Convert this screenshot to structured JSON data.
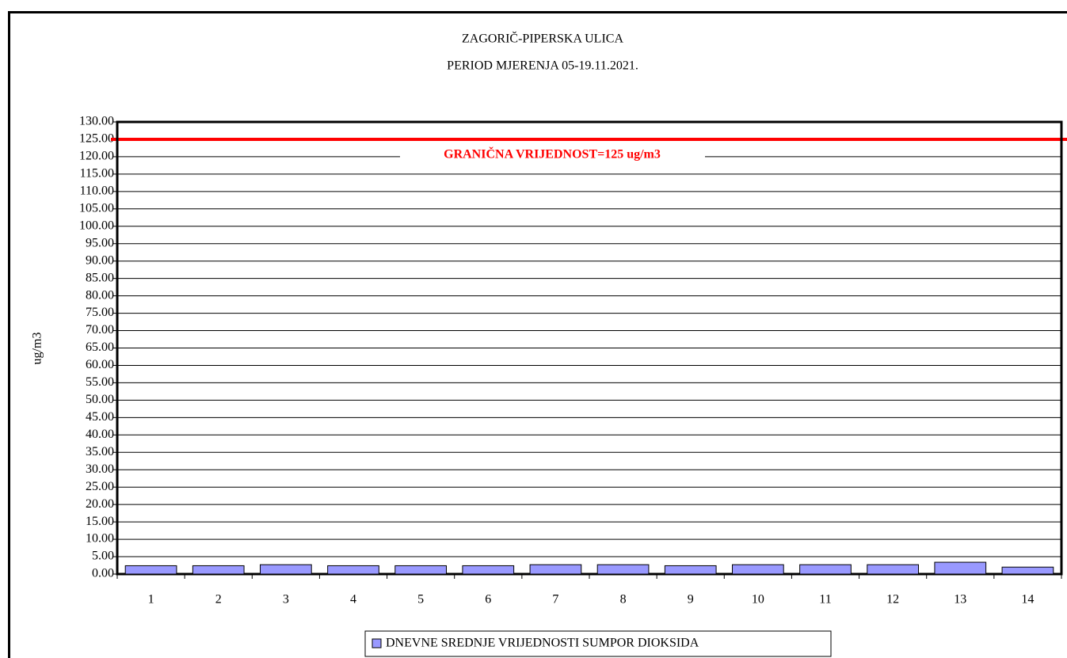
{
  "chart_data": {
    "type": "bar",
    "title": "ZAGORIČ-PIPERSKA ULICA",
    "subtitle": "PERIOD MJERENJA 05-19.11.2021.",
    "ylabel": "ug/m3",
    "categories": [
      "1",
      "2",
      "3",
      "4",
      "5",
      "6",
      "7",
      "8",
      "9",
      "10",
      "11",
      "12",
      "13",
      "14"
    ],
    "series": [
      {
        "name": "DNEVNE SREDNJE VRIJEDNOSTI SUMPOR DIOKSIDA",
        "color": "#9999ff",
        "values": [
          2.4,
          2.4,
          2.7,
          2.4,
          2.4,
          2.4,
          2.7,
          2.7,
          2.4,
          2.7,
          2.7,
          2.7,
          3.4,
          2.0
        ]
      }
    ],
    "ylim": [
      0,
      130
    ],
    "yticks": [
      {
        "value": 0,
        "label": "0.00"
      },
      {
        "value": 5,
        "label": "5.00"
      },
      {
        "value": 10,
        "label": "10.00"
      },
      {
        "value": 15,
        "label": "15.00"
      },
      {
        "value": 20,
        "label": "20.00"
      },
      {
        "value": 25,
        "label": "25.00"
      },
      {
        "value": 30,
        "label": "30.00"
      },
      {
        "value": 35,
        "label": "35.00"
      },
      {
        "value": 40,
        "label": "40.00"
      },
      {
        "value": 45,
        "label": "45.00"
      },
      {
        "value": 50,
        "label": "50.00"
      },
      {
        "value": 55,
        "label": "55.00"
      },
      {
        "value": 60,
        "label": "60.00"
      },
      {
        "value": 65,
        "label": "65.00"
      },
      {
        "value": 70,
        "label": "70.00"
      },
      {
        "value": 75,
        "label": "75.00"
      },
      {
        "value": 80,
        "label": "80.00"
      },
      {
        "value": 85,
        "label": "85.00"
      },
      {
        "value": 90,
        "label": "90.00"
      },
      {
        "value": 95,
        "label": "95.00"
      },
      {
        "value": 100,
        "label": "100.00"
      },
      {
        "value": 105,
        "label": "105.00"
      },
      {
        "value": 110,
        "label": "110.00"
      },
      {
        "value": 115,
        "label": "115.00"
      },
      {
        "value": 120,
        "label": "120.00"
      },
      {
        "value": 125,
        "label": "125.00"
      },
      {
        "value": 130,
        "label": "130.00"
      }
    ],
    "grid": true,
    "limit_line": {
      "value": 125,
      "label": "GRANIČNA VRIJEDNOST=125 ug/m3",
      "color": "#ff0000"
    },
    "legend": "bottom"
  }
}
